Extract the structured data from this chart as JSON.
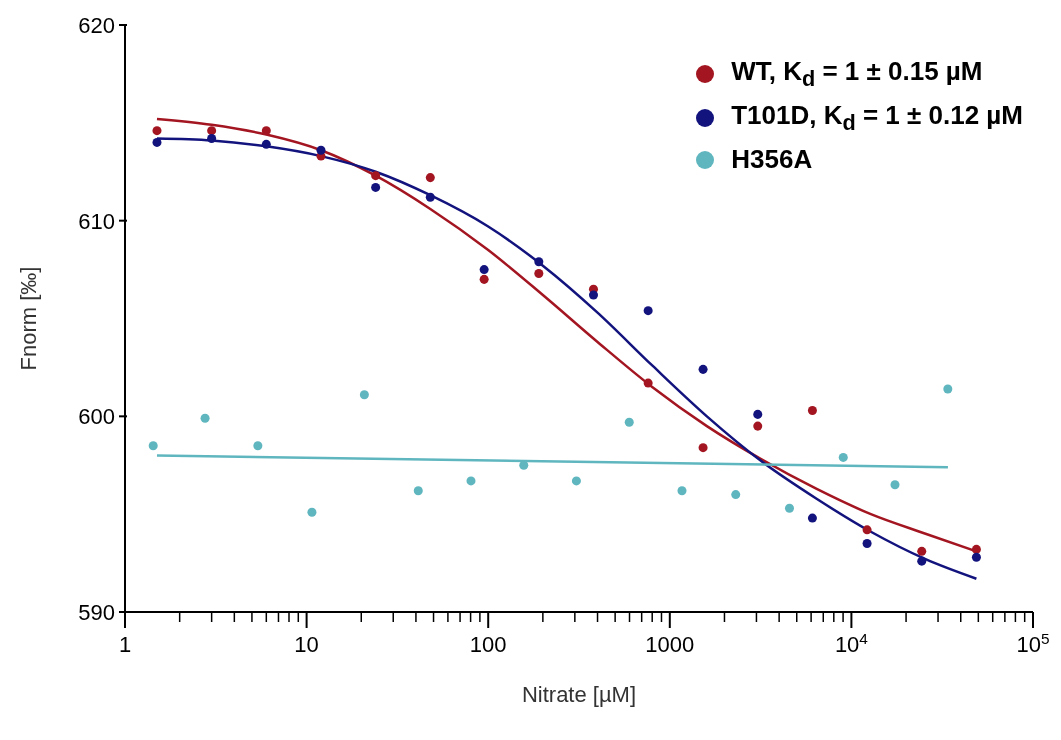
{
  "chart_data": {
    "type": "scatter",
    "xlabel": "Nitrate [µM]",
    "ylabel": "Fnorm [‰]",
    "log": "x",
    "xlim": [
      1,
      100000
    ],
    "ylim": [
      590,
      620
    ],
    "xticks": [
      1,
      {
        "value": 2,
        "label": null
      },
      {
        "value": 3,
        "label": null
      },
      {
        "value": 4,
        "label": null
      },
      {
        "value": 5,
        "label": null
      },
      {
        "value": 6,
        "label": null
      },
      {
        "value": 7,
        "label": null
      },
      {
        "value": 8,
        "label": null
      },
      {
        "value": 9,
        "label": null
      },
      10,
      {
        "value": 20,
        "label": null
      },
      {
        "value": 30,
        "label": null
      },
      {
        "value": 40,
        "label": null
      },
      {
        "value": 50,
        "label": null
      },
      {
        "value": 60,
        "label": null
      },
      {
        "value": 70,
        "label": null
      },
      {
        "value": 80,
        "label": null
      },
      {
        "value": 90,
        "label": null
      },
      100,
      {
        "value": 200,
        "label": null
      },
      {
        "value": 300,
        "label": null
      },
      {
        "value": 400,
        "label": null
      },
      {
        "value": 500,
        "label": null
      },
      {
        "value": 600,
        "label": null
      },
      {
        "value": 700,
        "label": null
      },
      {
        "value": 800,
        "label": null
      },
      {
        "value": 900,
        "label": null
      },
      1000,
      {
        "value": 2000,
        "label": null
      },
      {
        "value": 3000,
        "label": null
      },
      {
        "value": 4000,
        "label": null
      },
      {
        "value": 5000,
        "label": null
      },
      {
        "value": 6000,
        "label": null
      },
      {
        "value": 7000,
        "label": null
      },
      {
        "value": 8000,
        "label": null
      },
      {
        "value": 9000,
        "label": null
      },
      {
        "value": 10000,
        "label": "10$^{4}$"
      },
      {
        "value": 20000,
        "label": null
      },
      {
        "value": 30000,
        "label": null
      },
      {
        "value": 40000,
        "label": null
      },
      {
        "value": 50000,
        "label": null
      },
      {
        "value": 60000,
        "label": null
      },
      {
        "value": 70000,
        "label": null
      },
      {
        "value": 80000,
        "label": null
      },
      {
        "value": 90000,
        "label": null
      },
      {
        "value": 100000,
        "label": "10$^{5}$"
      }
    ],
    "yticks": [
      590,
      600,
      610,
      620
    ],
    "legend": "top right",
    "marker": "circle",
    "series": [
      {
        "name": "WT, K$_{d}$ = 1 ± 0.15 µM",
        "color": "#a31621",
        "x": [
          1.5,
          3,
          6,
          12,
          24,
          48,
          95,
          190,
          380,
          760,
          1525,
          3050,
          6100,
          12200,
          24400,
          48800
        ],
        "values": [
          614.6,
          614.6,
          614.6,
          613.3,
          612.3,
          612.2,
          607.0,
          607.3,
          606.5,
          601.7,
          598.4,
          599.5,
          600.3,
          594.2,
          593.1,
          593.2
        ]
      },
      {
        "name": "T101D, K$_{d}$ = 1 ± 0.12 µM",
        "color": "#13137e",
        "x": [
          1.5,
          3,
          6,
          12,
          24,
          48,
          95,
          190,
          380,
          760,
          1525,
          3050,
          6100,
          12200,
          24400,
          48800
        ],
        "values": [
          614.0,
          614.2,
          613.9,
          613.6,
          611.7,
          611.2,
          607.5,
          607.9,
          606.2,
          605.4,
          602.4,
          600.1,
          594.8,
          593.5,
          592.6,
          592.8
        ]
      },
      {
        "name": "H356A",
        "color": "#5fb6bf",
        "x": [
          1.43,
          2.76,
          5.39,
          10.7,
          20.8,
          41.2,
          80.4,
          157,
          306,
          598,
          1167,
          2307,
          4561,
          9020,
          17380,
          33960
        ],
        "values": [
          598.5,
          599.9,
          598.5,
          595.1,
          601.1,
          596.2,
          596.7,
          597.5,
          596.7,
          599.7,
          596.2,
          596.0,
          595.3,
          597.9,
          596.5,
          601.4
        ]
      },
      {
        "type": "line",
        "marker": "none",
        "color": "#a31621",
        "x": [
          1.5,
          3,
          6,
          12,
          24,
          48,
          100,
          200,
          400,
          800,
          1600,
          3200,
          6400,
          12800,
          25600,
          48800
        ],
        "values": [
          615.2,
          614.9,
          614.4,
          613.6,
          612.3,
          610.6,
          608.5,
          606.2,
          603.8,
          601.5,
          599.5,
          597.8,
          596.3,
          595.0,
          594.0,
          593.1
        ]
      },
      {
        "type": "line",
        "marker": "none",
        "color": "#13137e",
        "x": [
          1.5,
          3,
          6,
          12,
          24,
          48,
          100,
          200,
          400,
          800,
          1600,
          3200,
          6400,
          12800,
          25600,
          48800
        ],
        "values": [
          614.2,
          614.1,
          613.8,
          613.3,
          612.5,
          611.3,
          609.7,
          607.7,
          605.3,
          602.6,
          600.0,
          597.7,
          595.8,
          594.1,
          592.7,
          591.7
        ]
      },
      {
        "type": "line",
        "marker": "none",
        "color": "#5fb6bf",
        "x": [
          1.5,
          34000
        ],
        "values": [
          598.0,
          597.4
        ]
      }
    ]
  }
}
